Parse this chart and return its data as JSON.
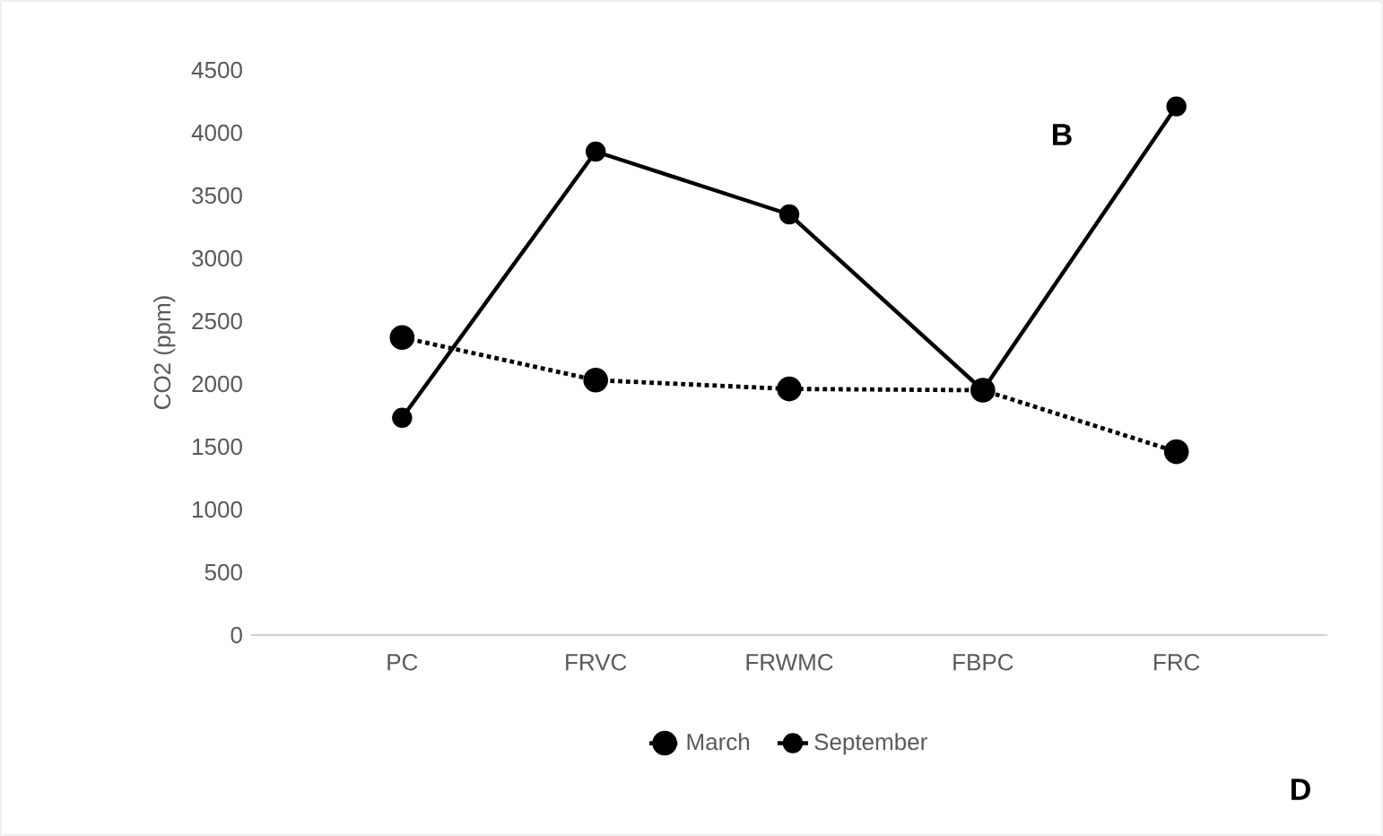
{
  "chart_data": {
    "type": "line",
    "ylabel": "CO2 (ppm)",
    "categories": [
      "PC",
      "FRVC",
      "FRWMC",
      "FBPC",
      "FRC"
    ],
    "series": [
      {
        "name": "March",
        "color": "#000000",
        "line_style": "dotted",
        "values": [
          2370,
          2030,
          1960,
          1950,
          1460
        ]
      },
      {
        "name": "September",
        "color": "#000000",
        "line_style": "solid",
        "values": [
          1730,
          3850,
          3350,
          1950,
          4210
        ]
      }
    ],
    "ylim": [
      0,
      4500
    ],
    "yticks": [
      0,
      500,
      1000,
      1500,
      2000,
      2500,
      3000,
      3500,
      4000,
      4500
    ],
    "marker": "circle",
    "grid": false,
    "legend": "bottom",
    "annotations": [
      "B",
      "D"
    ]
  }
}
